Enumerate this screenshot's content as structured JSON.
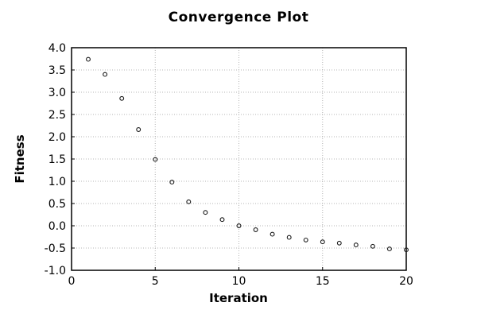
{
  "chart_data": {
    "type": "scatter",
    "title": "Convergence Plot",
    "xlabel": "Iteration",
    "ylabel": "Fitness",
    "x": [
      1,
      2,
      3,
      4,
      5,
      6,
      7,
      8,
      9,
      10,
      11,
      12,
      13,
      14,
      15,
      16,
      17,
      18,
      19,
      20
    ],
    "y": [
      3.74,
      3.4,
      2.86,
      2.16,
      1.49,
      0.98,
      0.54,
      0.3,
      0.14,
      0.0,
      -0.09,
      -0.19,
      -0.26,
      -0.32,
      -0.36,
      -0.39,
      -0.43,
      -0.46,
      -0.52,
      -0.54
    ],
    "xlim": [
      0,
      20
    ],
    "ylim": [
      -1.0,
      4.0
    ],
    "xticks": [
      0,
      5,
      10,
      15,
      20
    ],
    "xtick_labels": [
      "0",
      "5",
      "10",
      "15",
      "20"
    ],
    "yticks": [
      -1.0,
      -0.5,
      0.0,
      0.5,
      1.0,
      1.5,
      2.0,
      2.5,
      3.0,
      3.5,
      4.0
    ],
    "ytick_labels": [
      "-1.0",
      "-0.5",
      "0.0",
      "0.5",
      "1.0",
      "1.5",
      "2.0",
      "2.5",
      "3.0",
      "3.5",
      "4.0"
    ],
    "grid": true,
    "grid_style": "dotted",
    "legend_position": "none",
    "marker": "open-circle",
    "marker_color": "#1a1a1a",
    "grid_color": "#b4b4b4",
    "border_color": "#000000",
    "text_color": "#000000",
    "background": "#ffffff"
  }
}
